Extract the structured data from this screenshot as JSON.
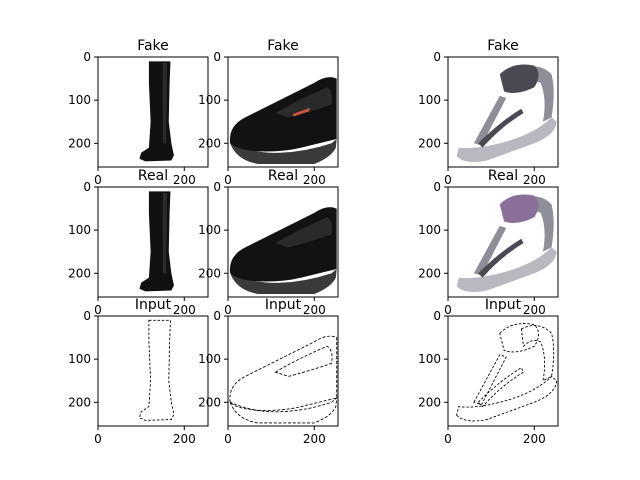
{
  "figure": {
    "background": "#ffffff",
    "rows": [
      {
        "row": "generated",
        "panels": [
          {
            "title": "Fake",
            "subject": "boot",
            "xticks": [
              "0",
              "200"
            ],
            "yticks": [
              "0",
              "100",
              "200"
            ]
          },
          {
            "title": "Fake",
            "subject": "flat-shoe",
            "xticks": [
              "0",
              "200"
            ],
            "yticks": [
              "0",
              "100",
              "200"
            ]
          },
          {
            "title": "Fake",
            "subject": "sandal",
            "xticks": [
              "0",
              "200"
            ],
            "yticks": [
              "0",
              "100",
              "200"
            ]
          }
        ]
      },
      {
        "row": "real",
        "panels": [
          {
            "title": "Real",
            "subject": "boot",
            "xticks": [
              "0",
              "200"
            ],
            "yticks": [
              "0",
              "100",
              "200"
            ]
          },
          {
            "title": "Real",
            "subject": "flat-shoe",
            "xticks": [
              "0",
              "200"
            ],
            "yticks": [
              "0",
              "100",
              "200"
            ]
          },
          {
            "title": "Real",
            "subject": "sandal",
            "xticks": [
              "0",
              "200"
            ],
            "yticks": [
              "0",
              "100",
              "200"
            ]
          }
        ]
      },
      {
        "row": "input",
        "panels": [
          {
            "title": "Input",
            "subject": "boot",
            "xticks": [
              "0",
              "200"
            ],
            "yticks": [
              "0",
              "100",
              "200"
            ]
          },
          {
            "title": "Input",
            "subject": "flat-shoe",
            "xticks": [
              "0",
              "200"
            ],
            "yticks": [
              "0",
              "100",
              "200"
            ]
          },
          {
            "title": "Input",
            "subject": "sandal",
            "xticks": [
              "0",
              "200"
            ],
            "yticks": [
              "0",
              "100",
              "200"
            ]
          }
        ]
      }
    ],
    "axis_range": [
      0,
      255
    ],
    "colors": {
      "boot": "#111111",
      "shoe": "#121212",
      "shoe_sole": "#3a3a3a",
      "shoe_accent": "#c8553d",
      "sandal_metal": "#8d8e97",
      "sandal_dark": "#4a4a52",
      "sandal_purple": "#8a6f98",
      "sandal_sole": "#b9b7bf",
      "edge_stroke": "#000000",
      "frame": "#000000"
    }
  }
}
